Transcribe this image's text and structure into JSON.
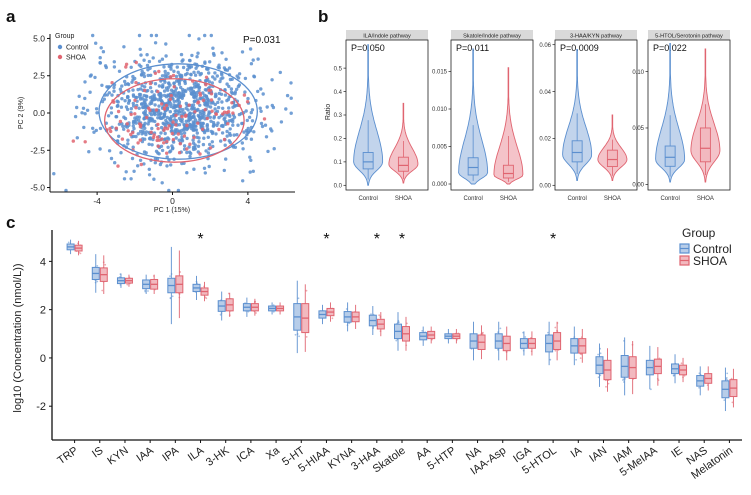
{
  "colors": {
    "control": "#5b8fcf",
    "shoa": "#e06470",
    "control_fill": "#b7cde9",
    "shoa_fill": "#f2b9bf",
    "strip": "#d9d9d9"
  },
  "panels": {
    "a": "a",
    "b": "b",
    "c": "c"
  },
  "chart_data": [
    {
      "type": "scatter",
      "panel": "a",
      "xlabel": "PC 1 (15%)",
      "ylabel": "PC 2 (9%)",
      "xlim": [
        -6.5,
        6.5
      ],
      "ylim": [
        -5.3,
        5.3
      ],
      "xticks": [
        -4,
        0,
        4
      ],
      "yticks": [
        5.0,
        2.5,
        0.0,
        -2.5,
        -5.0
      ],
      "ytick_labels": [
        "5.0",
        "2.5",
        "0.0",
        "-2.5",
        "-5.0"
      ],
      "xtick_labels": [
        "-4",
        "0",
        "4"
      ],
      "annotation": "P=0.031",
      "legend_title": "Group",
      "series": [
        {
          "name": "Control",
          "n": 1000,
          "center": [
            0.3,
            0.3
          ],
          "spread": [
            2.2,
            1.8
          ],
          "ellipse": {
            "cx": 0.3,
            "cy": 0.1,
            "rx": 4.2,
            "ry": 3.2
          }
        },
        {
          "name": "SHOA",
          "n": 120,
          "center": [
            0.0,
            -0.2
          ],
          "spread": [
            1.8,
            1.5
          ],
          "ellipse": {
            "cx": 0.1,
            "cy": -0.5,
            "rx": 3.7,
            "ry": 2.8
          }
        }
      ]
    },
    {
      "type": "violin",
      "panel": "b",
      "ylabel": "Ratio",
      "categories": [
        "Control",
        "SHOA"
      ],
      "facets": [
        {
          "title": "ILA/Indole pathway",
          "p": "P=0.050",
          "ylim": [
            -0.02,
            0.62
          ],
          "yticks": [
            0.0,
            0.1,
            0.2,
            0.3,
            0.4,
            0.5
          ],
          "ytick_labels": [
            "0.0",
            "0.1",
            "0.2",
            "0.3",
            "0.4",
            "0.5"
          ],
          "groups": [
            {
              "name": "Control",
              "min": 0.0,
              "q1": 0.07,
              "median": 0.1,
              "q3": 0.14,
              "max": 0.6,
              "mode": 0.1
            },
            {
              "name": "SHOA",
              "min": 0.01,
              "q1": 0.06,
              "median": 0.085,
              "q3": 0.12,
              "max": 0.35,
              "mode": 0.09
            }
          ]
        },
        {
          "title": "Skatole/Indole pathway",
          "p": "P=0.011",
          "ylim": [
            -0.0008,
            0.0192
          ],
          "yticks": [
            0.0,
            0.005,
            0.01,
            0.015
          ],
          "ytick_labels": [
            "0.000",
            "0.005",
            "0.010",
            "0.015"
          ],
          "groups": [
            {
              "name": "Control",
              "min": 0.0,
              "q1": 0.0012,
              "median": 0.0022,
              "q3": 0.0035,
              "max": 0.018,
              "mode": 0.0015
            },
            {
              "name": "SHOA",
              "min": 0.0,
              "q1": 0.0008,
              "median": 0.0014,
              "q3": 0.0025,
              "max": 0.0155,
              "mode": 0.0012
            }
          ]
        },
        {
          "title": "3-HAA/KYN pathway",
          "p": "P=0.0009",
          "ylim": [
            -0.002,
            0.062
          ],
          "yticks": [
            0.0,
            0.02,
            0.04,
            0.06
          ],
          "ytick_labels": [
            "0.00",
            "0.02",
            "0.04",
            "0.06"
          ],
          "groups": [
            {
              "name": "Control",
              "min": 0.002,
              "q1": 0.01,
              "median": 0.014,
              "q3": 0.019,
              "max": 0.058,
              "mode": 0.013
            },
            {
              "name": "SHOA",
              "min": 0.002,
              "q1": 0.008,
              "median": 0.011,
              "q3": 0.015,
              "max": 0.03,
              "mode": 0.011
            }
          ]
        },
        {
          "title": "5-HTOL/Serotonin pathway",
          "p": "P=0.022",
          "ylim": [
            -0.005,
            0.128
          ],
          "yticks": [
            0.0,
            0.05,
            0.1
          ],
          "ytick_labels": [
            "0.00",
            "0.05",
            "0.10"
          ],
          "groups": [
            {
              "name": "Control",
              "min": 0.002,
              "q1": 0.016,
              "median": 0.024,
              "q3": 0.034,
              "max": 0.125,
              "mode": 0.022
            },
            {
              "name": "SHOA",
              "min": 0.002,
              "q1": 0.02,
              "median": 0.032,
              "q3": 0.05,
              "max": 0.12,
              "mode": 0.03
            }
          ]
        }
      ]
    },
    {
      "type": "box",
      "panel": "c",
      "ylabel": "log10 (Concentration (nmol/L))",
      "ylim": [
        -3.4,
        5.3
      ],
      "yticks": [
        -2,
        0,
        2,
        4
      ],
      "ytick_labels": [
        "-2",
        "0",
        "2",
        "4"
      ],
      "legend_title": "Group",
      "legend": [
        "Control",
        "SHOA"
      ],
      "categories": [
        "TRP",
        "IS",
        "KYN",
        "IAA",
        "IPA",
        "ILA",
        "3-HK",
        "ICA",
        "Xa",
        "5-HT",
        "5-HIAA",
        "KYNA",
        "3-HAA",
        "Skatole",
        "AA",
        "5-HTP",
        "NA",
        "IAA-Asp",
        "IGA",
        "5-HTOL",
        "IA",
        "IAN",
        "IAM",
        "5-MeIAA",
        "IE",
        "NAS",
        "Melatonin"
      ],
      "significant": [
        "ILA",
        "5-HIAA",
        "3-HAA",
        "Skatole",
        "5-HTOL"
      ],
      "star_label": "*",
      "series": [
        {
          "name": "Control",
          "medians": [
            4.6,
            3.5,
            3.2,
            3.05,
            3.0,
            2.9,
            2.15,
            2.1,
            2.05,
            1.7,
            1.8,
            1.7,
            1.55,
            1.1,
            0.9,
            0.9,
            0.7,
            0.7,
            0.6,
            0.6,
            0.5,
            -0.3,
            -0.35,
            -0.4,
            -0.45,
            -0.95,
            -1.3
          ],
          "iqr": [
            0.12,
            0.25,
            0.12,
            0.18,
            0.3,
            0.15,
            0.22,
            0.15,
            0.1,
            0.55,
            0.15,
            0.22,
            0.22,
            0.3,
            0.15,
            0.1,
            0.3,
            0.3,
            0.2,
            0.35,
            0.3,
            0.35,
            0.45,
            0.3,
            0.2,
            0.22,
            0.35
          ],
          "whisker": [
            0.3,
            0.8,
            0.3,
            0.4,
            1.6,
            0.5,
            0.6,
            0.4,
            0.25,
            1.5,
            0.4,
            0.6,
            0.6,
            0.8,
            0.4,
            0.3,
            0.8,
            0.8,
            0.5,
            0.9,
            0.8,
            0.9,
            1.2,
            0.9,
            0.6,
            0.6,
            0.9
          ]
        },
        {
          "name": "SHOA",
          "medians": [
            4.55,
            3.45,
            3.2,
            3.05,
            3.05,
            2.75,
            2.2,
            2.1,
            2.05,
            1.65,
            1.9,
            1.7,
            1.4,
            1.0,
            0.95,
            0.9,
            0.65,
            0.6,
            0.6,
            0.7,
            0.5,
            -0.5,
            -0.4,
            -0.35,
            -0.5,
            -0.85,
            -1.25
          ],
          "iqr": [
            0.12,
            0.28,
            0.1,
            0.2,
            0.35,
            0.15,
            0.25,
            0.15,
            0.1,
            0.6,
            0.15,
            0.2,
            0.2,
            0.3,
            0.15,
            0.1,
            0.3,
            0.3,
            0.2,
            0.35,
            0.3,
            0.4,
            0.45,
            0.3,
            0.2,
            0.2,
            0.35
          ],
          "whisker": [
            0.3,
            0.8,
            0.25,
            0.4,
            1.4,
            0.4,
            0.5,
            0.35,
            0.25,
            1.4,
            0.4,
            0.5,
            0.5,
            0.7,
            0.35,
            0.3,
            0.7,
            0.7,
            0.5,
            0.8,
            0.7,
            0.9,
            1.1,
            0.8,
            0.5,
            0.5,
            0.8
          ]
        }
      ]
    }
  ]
}
